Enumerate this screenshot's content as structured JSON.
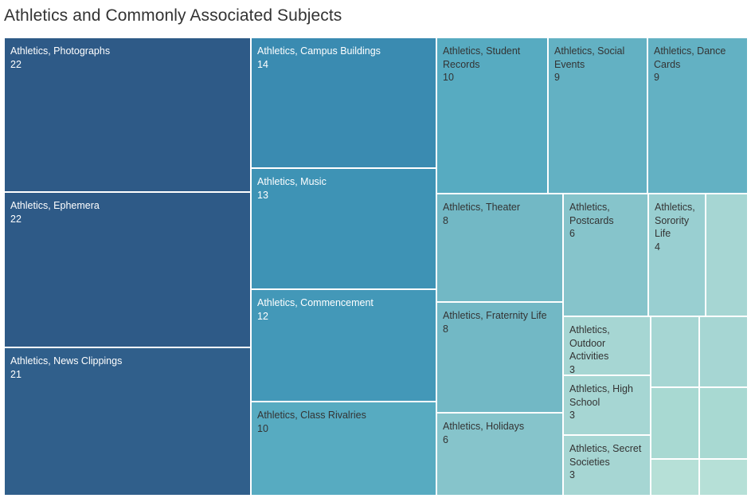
{
  "chart_data": {
    "type": "treemap",
    "title": "Athletics and Commonly Associated Subjects",
    "items": [
      {
        "label": "Athletics, Photographs",
        "value": 22,
        "color": "#2e5a87"
      },
      {
        "label": "Athletics, Ephemera",
        "value": 22,
        "color": "#2e5a87"
      },
      {
        "label": "Athletics, News Clippings",
        "value": 21,
        "color": "#305f8b"
      },
      {
        "label": "Athletics, Campus Buildings",
        "value": 14,
        "color": "#3a8bb1"
      },
      {
        "label": "Athletics, Music",
        "value": 13,
        "color": "#3e93b5"
      },
      {
        "label": "Athletics, Commencement",
        "value": 12,
        "color": "#4398b8"
      },
      {
        "label": "Athletics, Class Rivalries",
        "value": 10,
        "color": "#57abc1"
      },
      {
        "label": "Athletics, Student Records",
        "value": 10,
        "color": "#57abc1"
      },
      {
        "label": "Athletics, Social Events",
        "value": 9,
        "color": "#63b1c3"
      },
      {
        "label": "Athletics, Dance Cards",
        "value": 9,
        "color": "#63b1c3"
      },
      {
        "label": "Athletics, Theater",
        "value": 8,
        "color": "#72b8c5"
      },
      {
        "label": "Athletics, Fraternity Life",
        "value": 8,
        "color": "#72b8c5"
      },
      {
        "label": "Athletics, Postcards",
        "value": 6,
        "color": "#86c4cb"
      },
      {
        "label": "Athletics, Holidays",
        "value": 6,
        "color": "#86c4cb"
      },
      {
        "label": "Athletics, Sorority Life",
        "value": 4,
        "color": "#99cfd1"
      },
      {
        "label": "Athletics, Outdoor Activities",
        "value": 3,
        "color": "#a6d6d3"
      },
      {
        "label": "Athletics, High School",
        "value": 3,
        "color": "#a6d6d3"
      },
      {
        "label": "Athletics, Secret Societies",
        "value": 3,
        "color": "#a6d6d3"
      },
      {
        "label": "",
        "value": 2,
        "color": "#a6d6d3"
      },
      {
        "label": "",
        "value": 2,
        "color": "#a6d6d3"
      },
      {
        "label": "",
        "value": 2,
        "color": "#a6d6d3"
      },
      {
        "label": "",
        "value": 2,
        "color": "#a8d9d2"
      },
      {
        "label": "",
        "value": 2,
        "color": "#a8d9d2"
      },
      {
        "label": "",
        "value": 1,
        "color": "#b6e0d7"
      },
      {
        "label": "",
        "value": 1,
        "color": "#b6e0d7"
      }
    ]
  }
}
